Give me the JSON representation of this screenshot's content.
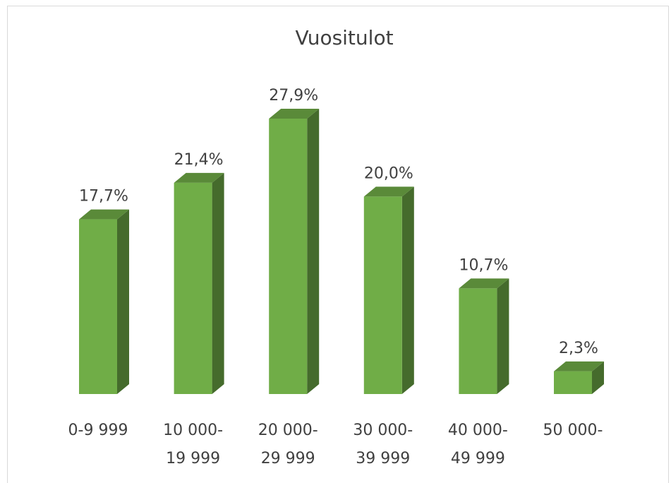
{
  "chart_data": {
    "type": "bar3d",
    "title": "Vuositulot",
    "categories": [
      "0-9 999",
      "10 000-\n19 999",
      "20 000-\n29 999",
      "30 000-\n39 999",
      "40 000-\n49 999",
      "50 000-"
    ],
    "values": [
      17.7,
      21.4,
      27.9,
      20.0,
      10.7,
      2.3
    ],
    "value_labels": [
      "17,7%",
      "21,4%",
      "27,9%",
      "20,0%",
      "10,7%",
      "2,3%"
    ],
    "color": "#70ad47"
  }
}
